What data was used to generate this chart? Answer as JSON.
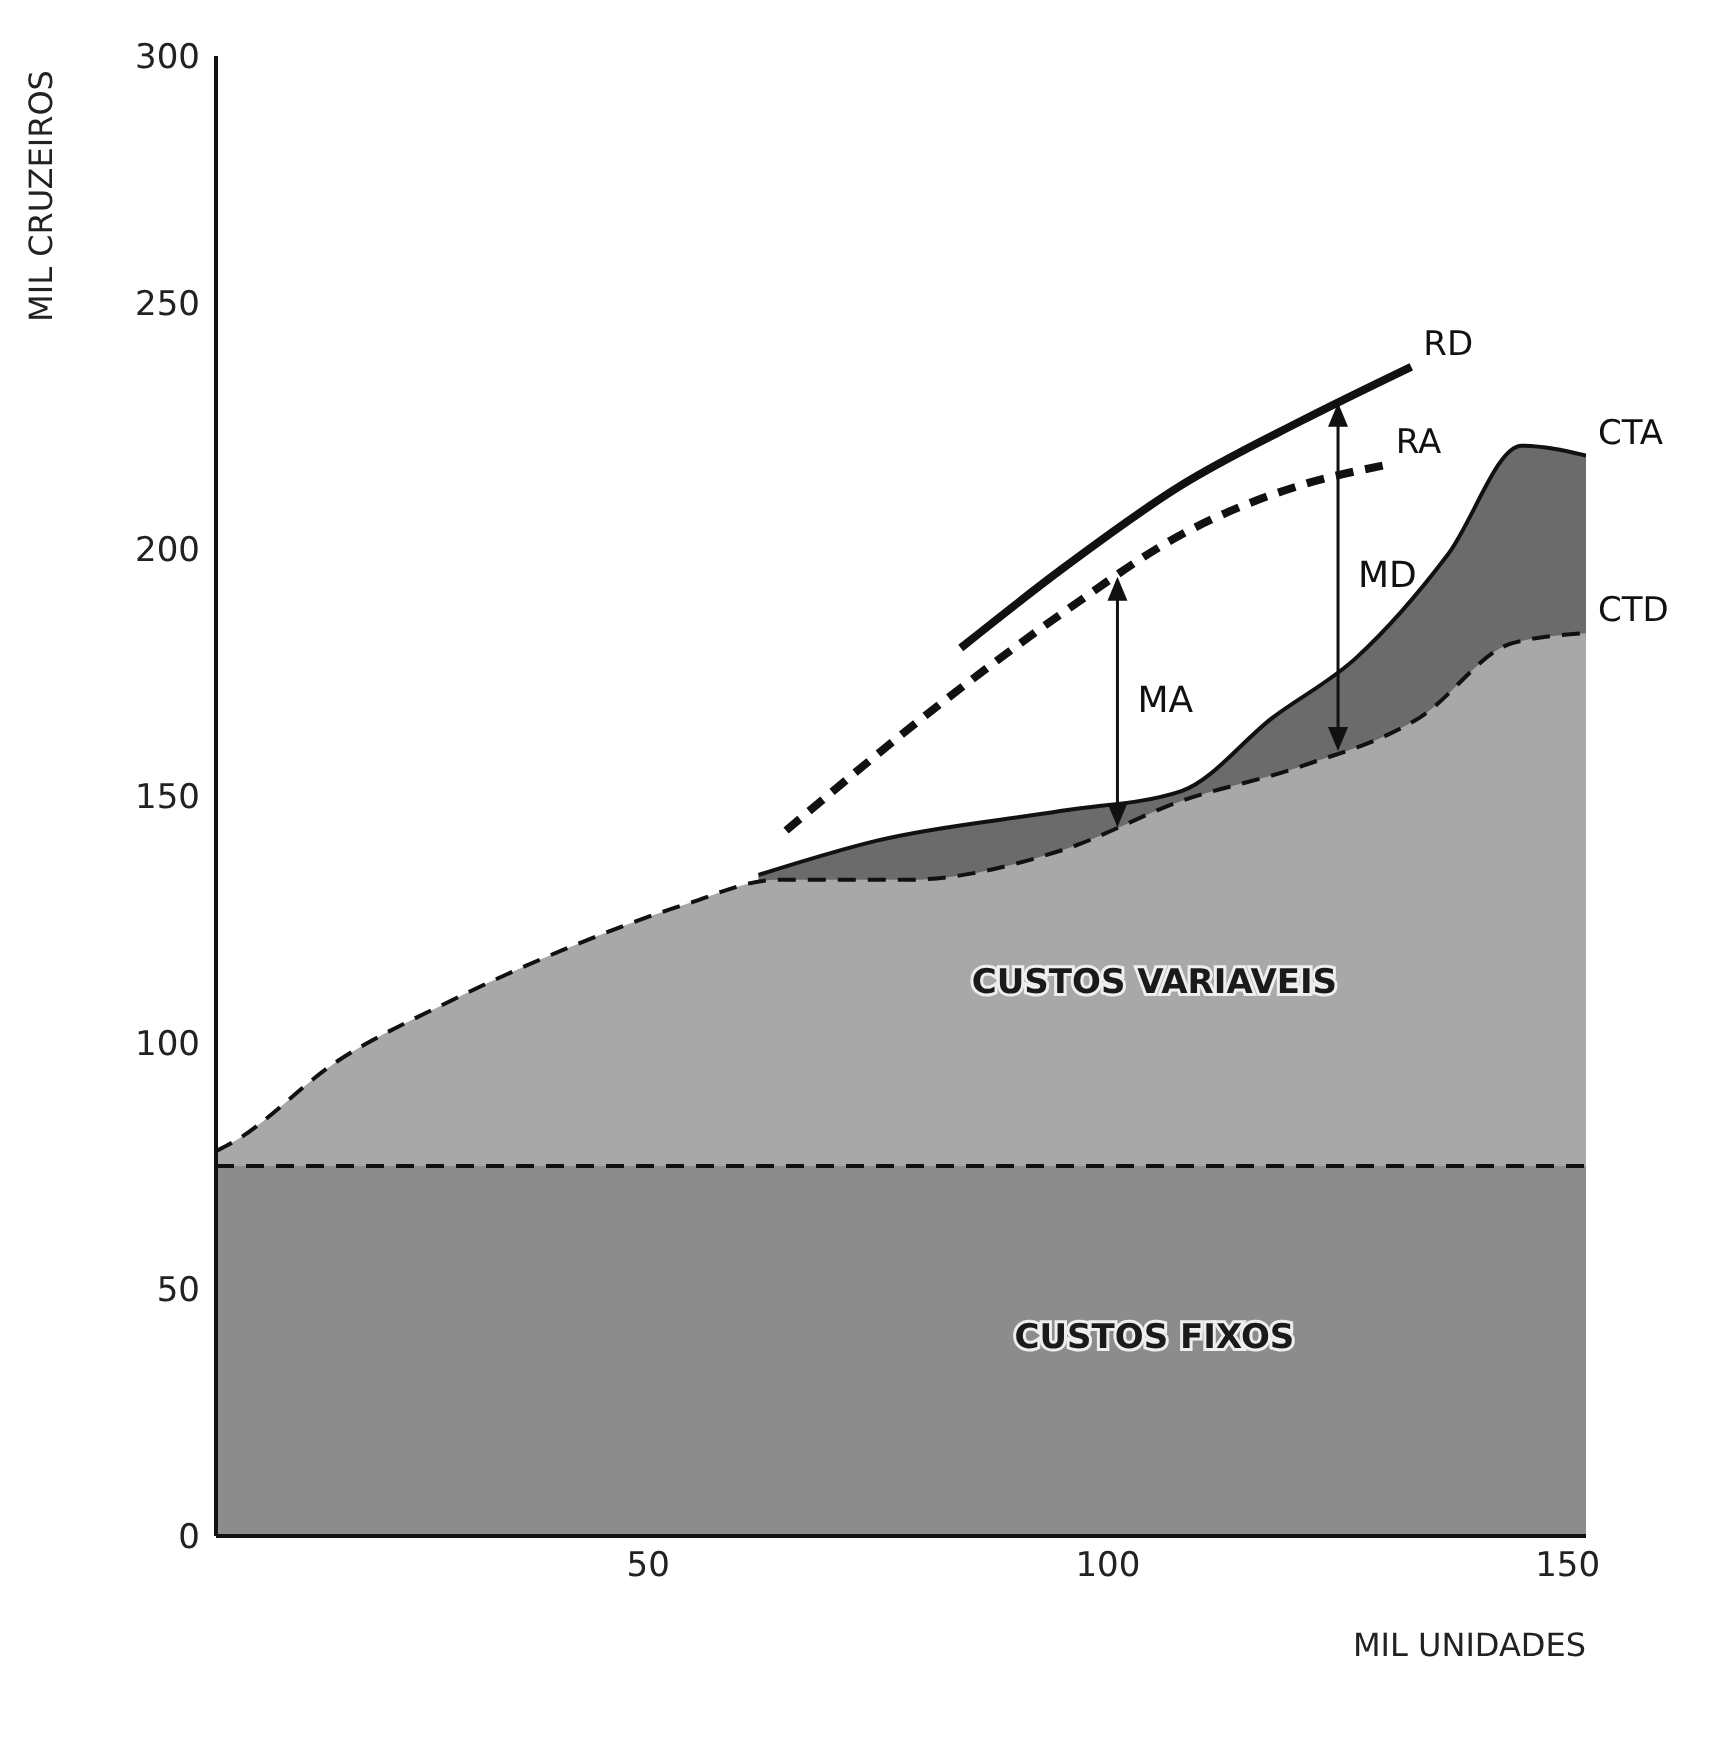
{
  "chart_data": {
    "type": "area",
    "xlabel": "MIL UNIDADES",
    "ylabel": "MIL CRUZEIROS",
    "xlim": [
      3,
      152
    ],
    "ylim": [
      0,
      300
    ],
    "xticks": [
      50,
      100,
      150
    ],
    "yticks": [
      0,
      50,
      100,
      150,
      200,
      250,
      300
    ],
    "grid": false,
    "legend": false,
    "series": [
      {
        "name": "RD",
        "type": "line",
        "color": "#111111",
        "line_style": "solid",
        "x": [
          84,
          95,
          108,
          121,
          133
        ],
        "values": [
          180,
          196,
          213,
          226,
          237
        ]
      },
      {
        "name": "RA",
        "type": "line",
        "color": "#111111",
        "line_style": "dashed",
        "x": [
          65,
          82,
          95,
          108,
          121,
          130
        ],
        "values": [
          143,
          169,
          187,
          203,
          213,
          217
        ]
      },
      {
        "name": "CTA",
        "color": "#6b6b6b",
        "x": [
          62,
          75,
          95,
          108,
          118,
          127,
          137,
          145,
          152
        ],
        "values": [
          134,
          141,
          147,
          151,
          166,
          178,
          199,
          221,
          219
        ]
      },
      {
        "name": "CTD",
        "color": "#a8a8a8",
        "line_style": "dashed",
        "x": [
          3,
          5,
          16,
          28,
          41,
          54,
          64,
          78,
          95,
          108,
          121,
          134,
          144,
          152
        ],
        "values": [
          78,
          80,
          96,
          108,
          119,
          128,
          133,
          133,
          139,
          149,
          156,
          166,
          181,
          183
        ]
      },
      {
        "color": "#8c8c8c",
        "line_style": "dashed",
        "x": [
          3,
          152
        ],
        "values": [
          75,
          75
        ]
      }
    ],
    "annotations": [
      "MA",
      "MD",
      "CUSTOS VARIAVEIS",
      "CUSTOS FIXOS"
    ]
  }
}
